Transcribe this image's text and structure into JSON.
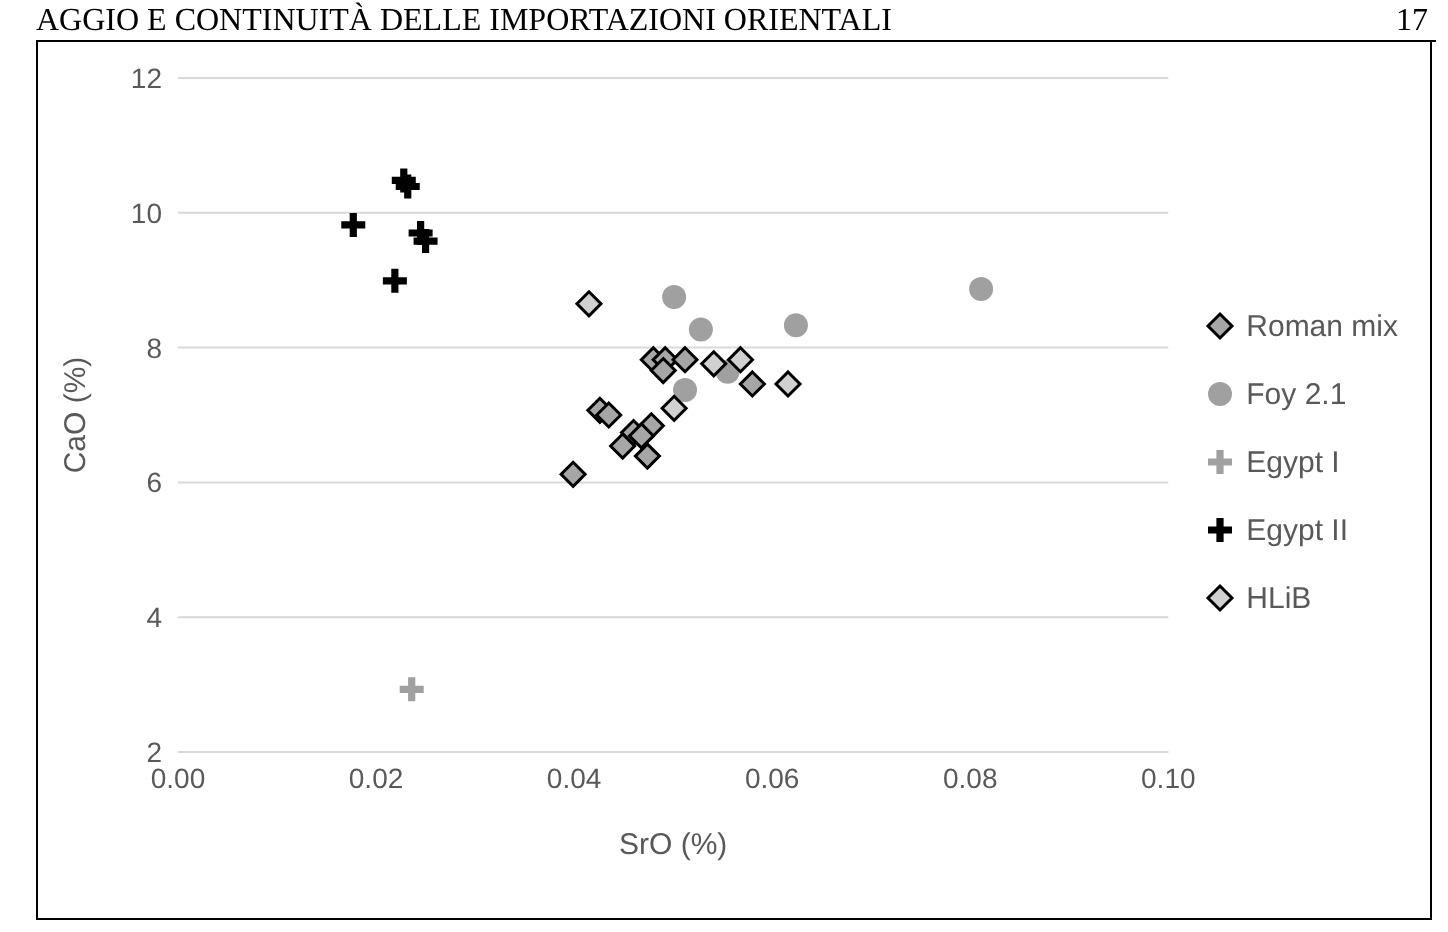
{
  "chart_data": {
    "type": "scatter",
    "xlabel": "SrO (%)",
    "ylabel": "CaO (%)",
    "annotations": [
      "AGGIO E CONTINUITÀ DELLE IMPORTAZIONI ORIENTALI",
      "17"
    ],
    "xlim": [
      0,
      0.1
    ],
    "xticks": [
      {
        "value": 0,
        "label": "0.00"
      },
      {
        "value": 0.02,
        "label": "0.02"
      },
      {
        "value": 0.04,
        "label": "0.04"
      },
      {
        "value": 0.06,
        "label": "0.06"
      },
      {
        "value": 0.08,
        "label": "0.08"
      },
      {
        "value": 0.1,
        "label": "0.10"
      }
    ],
    "ylim": [
      2,
      12
    ],
    "yticks": [
      2,
      4,
      6,
      8,
      10,
      12
    ],
    "grid": "y",
    "legend": "right",
    "series": [
      {
        "name": "Roman mix",
        "color": "#a6a6a6",
        "marker": "diamond",
        "x": [
          0.048,
          0.0492,
          0.0512,
          0.049,
          0.058,
          0.0478,
          0.046,
          0.0449,
          0.0468,
          0.0474,
          0.0426,
          0.0435,
          0.0399
        ],
        "values": [
          7.82,
          7.82,
          7.82,
          7.66,
          7.46,
          6.84,
          6.74,
          6.54,
          6.69,
          6.39,
          7.07,
          7.0,
          6.12
        ]
      },
      {
        "name": "Foy 2.1",
        "color": "#a0a0a0",
        "marker": "circle",
        "x": [
          0.0501,
          0.0528,
          0.0624,
          0.0811,
          0.0512,
          0.0555
        ],
        "values": [
          8.75,
          8.27,
          8.33,
          8.87,
          7.37,
          7.64
        ]
      },
      {
        "name": "Egypt I",
        "color": "#a0a0a0",
        "marker": "cross",
        "x": [
          0.0236
        ],
        "values": [
          2.93
        ]
      },
      {
        "name": "Egypt II",
        "color": "#000000",
        "marker": "cross",
        "x": [
          0.0177,
          0.0228,
          0.0232,
          0.0245,
          0.025,
          0.0219
        ],
        "values": [
          9.82,
          10.48,
          10.39,
          9.7,
          9.58,
          8.99
        ]
      },
      {
        "name": "HLiB",
        "color": "#d0d0d0",
        "marker": "diamond",
        "x": [
          0.0541,
          0.0568,
          0.0616,
          0.0501,
          0.0415
        ],
        "values": [
          7.76,
          7.82,
          7.46,
          7.1,
          8.65
        ]
      }
    ]
  }
}
